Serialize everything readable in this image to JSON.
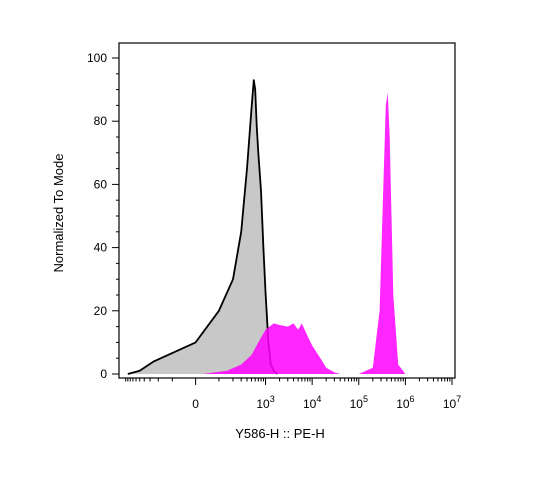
{
  "chart_data": {
    "type": "area",
    "title": "",
    "xlabel": "Y586-H :: PE-H",
    "ylabel": "Normalized To Mode",
    "x_scale": "biexponential",
    "ylim": [
      0,
      100
    ],
    "y_ticks": [
      "0",
      "20",
      "40",
      "60",
      "80",
      "100"
    ],
    "x_ticks": [
      {
        "base": "0",
        "exp": ""
      },
      {
        "base": "10",
        "exp": "3"
      },
      {
        "base": "10",
        "exp": "4"
      },
      {
        "base": "10",
        "exp": "5"
      },
      {
        "base": "10",
        "exp": "6"
      },
      {
        "base": "10",
        "exp": "7"
      }
    ],
    "grid": false,
    "legend": "none",
    "series": [
      {
        "color": "#c8c8c8",
        "outline": "#000000",
        "x": [
          -900,
          -500,
          -250,
          0,
          100,
          200,
          300,
          400,
          500,
          560,
          600,
          650,
          700,
          800,
          900,
          1000,
          1150,
          1300,
          1500,
          1800
        ],
        "values": [
          0,
          1,
          4,
          10,
          20,
          30,
          45,
          65,
          84,
          93,
          90,
          78,
          70,
          58,
          40,
          26,
          10,
          3,
          1,
          0
        ]
      },
      {
        "color": "#ff00ff",
        "x": [
          30,
          150,
          300,
          500,
          700,
          1000,
          1500,
          2000,
          3000,
          4000,
          5000,
          6000,
          8000,
          10000,
          15000,
          20000,
          30000,
          40000,
          100000,
          200000,
          280000,
          330000,
          380000,
          420000,
          460000,
          550000,
          700000,
          1000000
        ],
        "values": [
          0,
          1,
          3,
          6,
          10,
          14,
          16,
          15.5,
          15,
          16,
          14,
          16,
          12,
          9,
          5,
          2,
          0.5,
          0,
          0,
          2,
          20,
          55,
          85,
          89,
          75,
          25,
          3,
          0
        ]
      }
    ]
  }
}
